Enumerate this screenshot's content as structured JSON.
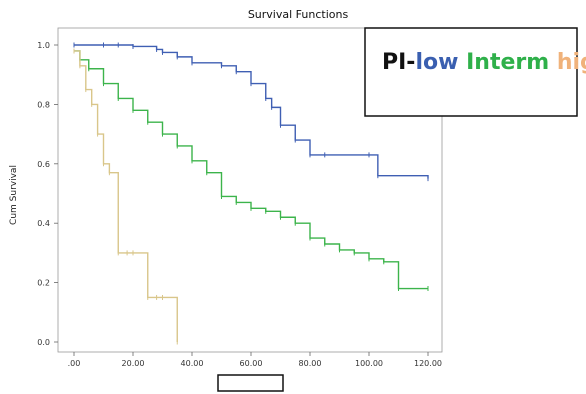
{
  "chart_data": {
    "type": "line",
    "title": "Survival Functions",
    "xlabel": "",
    "ylabel": "Cum Survival",
    "xlim": [
      0,
      120
    ],
    "ylim": [
      0,
      1.0
    ],
    "x_ticks": [
      0,
      20,
      40,
      60,
      80,
      100,
      120
    ],
    "x_tick_labels": [
      ".00",
      "20.00",
      "40.00",
      "60.00",
      "80.00",
      "100.00",
      "120.00"
    ],
    "y_ticks": [
      0,
      0.2,
      0.4,
      0.6,
      0.8,
      1.0
    ],
    "y_tick_labels": [
      "0.0",
      "0.2",
      "0.4",
      "0.6",
      "0.8",
      "1.0"
    ],
    "grid": false,
    "legend_position": "top-right",
    "legend": [
      {
        "text": "PI-",
        "color": "#111111"
      },
      {
        "text": "low",
        "color": "#3a5fb0"
      },
      {
        "text": " ",
        "color": "#111111"
      },
      {
        "text": "Interm",
        "color": "#2fb04a"
      },
      {
        "text": " ",
        "color": "#111111"
      },
      {
        "text": "high",
        "color": "#f0b27a"
      }
    ],
    "series": [
      {
        "color": "#3f5fb3",
        "x": [
          0,
          10,
          15,
          20,
          28,
          30,
          35,
          40,
          50,
          55,
          60,
          65,
          67,
          70,
          75,
          80,
          85,
          100,
          103,
          120
        ],
        "y": [
          1.0,
          1.0,
          1.0,
          0.995,
          0.985,
          0.975,
          0.96,
          0.94,
          0.93,
          0.91,
          0.87,
          0.82,
          0.79,
          0.73,
          0.68,
          0.63,
          0.63,
          0.63,
          0.56,
          0.55
        ]
      },
      {
        "color": "#3cb44b",
        "x": [
          0,
          2,
          5,
          10,
          15,
          20,
          25,
          30,
          35,
          40,
          45,
          50,
          55,
          60,
          65,
          70,
          75,
          80,
          85,
          90,
          95,
          100,
          105,
          110,
          120
        ],
        "y": [
          0.98,
          0.95,
          0.92,
          0.87,
          0.82,
          0.78,
          0.74,
          0.7,
          0.66,
          0.61,
          0.57,
          0.49,
          0.47,
          0.45,
          0.44,
          0.42,
          0.4,
          0.35,
          0.33,
          0.31,
          0.3,
          0.28,
          0.27,
          0.18,
          0.18
        ]
      },
      {
        "color": "#d9c68a",
        "x": [
          0,
          2,
          4,
          6,
          8,
          10,
          12,
          15,
          18,
          20,
          25,
          28,
          30,
          35
        ],
        "y": [
          0.98,
          0.93,
          0.85,
          0.8,
          0.7,
          0.6,
          0.57,
          0.3,
          0.3,
          0.3,
          0.15,
          0.15,
          0.15,
          0.0
        ]
      }
    ]
  }
}
